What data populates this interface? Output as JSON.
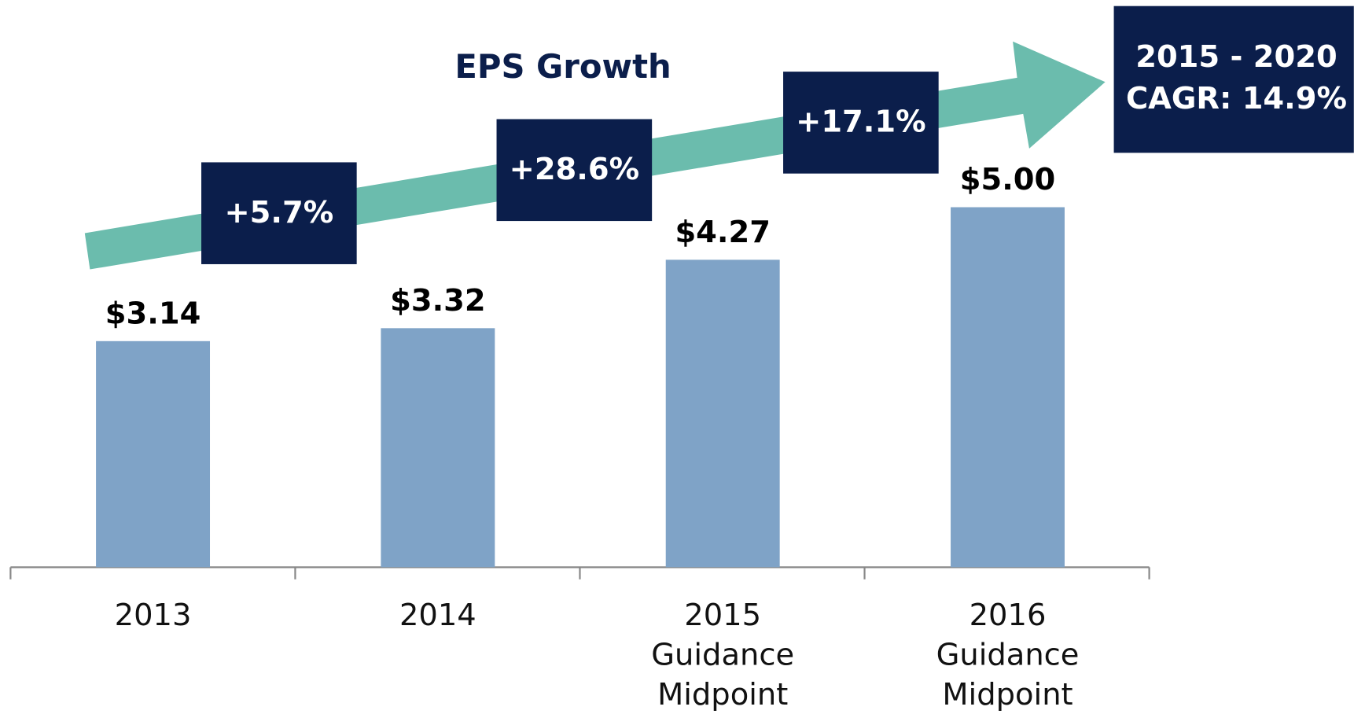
{
  "chart_data": {
    "type": "bar",
    "title": "EPS Growth",
    "categories": [
      "2013",
      "2014",
      "2015 Guidance Midpoint",
      "2016 Guidance Midpoint"
    ],
    "values": [
      3.14,
      3.32,
      4.27,
      5.0
    ],
    "value_labels": [
      "$3.14",
      "$3.32",
      "$4.27",
      "$5.00"
    ],
    "color": "#7fa3c7",
    "growth_labels": [
      "+5.7%",
      "+28.6%",
      "+17.1%"
    ],
    "callout": [
      "2015 - 2020",
      "CAGR: 14.9%"
    ]
  }
}
